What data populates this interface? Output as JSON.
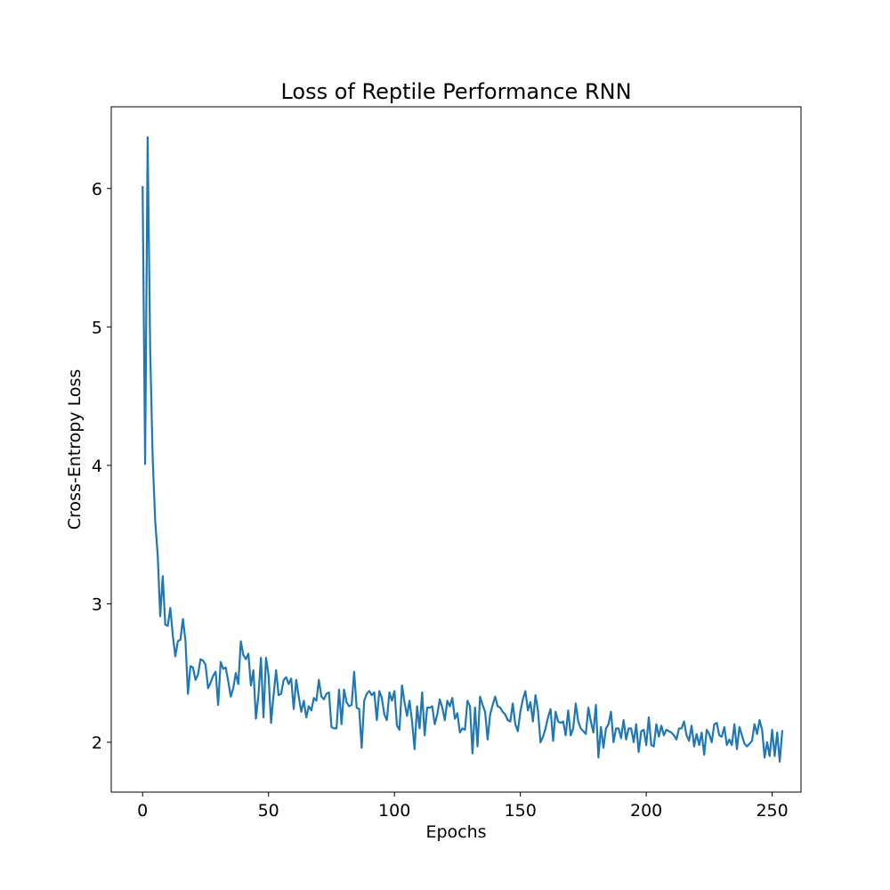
{
  "chart_data": {
    "type": "line",
    "title": "Loss of Reptile Performance RNN",
    "xlabel": "Epochs",
    "ylabel": "Cross-Entropy Loss",
    "xlim": [
      -12.45,
      261.45
    ],
    "ylim": [
      1.64,
      6.59
    ],
    "xticks": [
      0,
      50,
      100,
      150,
      200,
      250
    ],
    "yticks": [
      2,
      3,
      4,
      5,
      6
    ],
    "grid": false,
    "legend": "none",
    "line_color": "#1f77b4",
    "series": [
      {
        "x_start": 0,
        "x_step": 1,
        "values": [
          6.01,
          4.01,
          6.37,
          4.84,
          4.05,
          3.6,
          3.35,
          2.91,
          3.2,
          2.85,
          2.84,
          2.97,
          2.77,
          2.62,
          2.73,
          2.74,
          2.89,
          2.74,
          2.35,
          2.55,
          2.54,
          2.45,
          2.49,
          2.6,
          2.59,
          2.56,
          2.39,
          2.43,
          2.48,
          2.51,
          2.27,
          2.58,
          2.53,
          2.54,
          2.44,
          2.33,
          2.39,
          2.5,
          2.42,
          2.73,
          2.63,
          2.6,
          2.64,
          2.41,
          2.52,
          2.17,
          2.34,
          2.61,
          2.18,
          2.61,
          2.49,
          2.14,
          2.34,
          2.52,
          2.34,
          2.35,
          2.45,
          2.47,
          2.42,
          2.46,
          2.24,
          2.45,
          2.33,
          2.22,
          2.3,
          2.18,
          2.26,
          2.23,
          2.32,
          2.3,
          2.45,
          2.33,
          2.31,
          2.35,
          2.36,
          2.11,
          2.1,
          2.1,
          2.38,
          2.13,
          2.38,
          2.29,
          2.26,
          2.27,
          2.51,
          2.25,
          2.24,
          1.96,
          2.3,
          2.35,
          2.37,
          2.34,
          2.36,
          2.16,
          2.37,
          2.32,
          2.2,
          2.16,
          2.36,
          2.3,
          2.37,
          2.12,
          2.09,
          2.41,
          2.29,
          2.19,
          2.3,
          2.15,
          1.95,
          2.26,
          2.1,
          2.36,
          2.05,
          2.25,
          2.25,
          2.26,
          2.13,
          2.2,
          2.31,
          2.25,
          2.16,
          2.3,
          2.26,
          2.32,
          2.17,
          2.21,
          2.07,
          2.1,
          2.09,
          2.3,
          2.26,
          1.92,
          2.25,
          1.97,
          2.33,
          2.27,
          2.22,
          2.02,
          2.2,
          2.27,
          2.33,
          2.26,
          2.25,
          2.22,
          2.2,
          2.16,
          2.15,
          2.28,
          2.13,
          2.08,
          2.22,
          2.31,
          2.37,
          2.23,
          2.29,
          2.15,
          2.34,
          2.23,
          2.0,
          2.04,
          2.1,
          2.18,
          2.24,
          2.01,
          2.22,
          2.15,
          2.14,
          2.15,
          2.05,
          2.23,
          2.05,
          2.1,
          2.28,
          2.15,
          2.1,
          2.08,
          2.06,
          2.25,
          2.15,
          2.07,
          2.27,
          1.89,
          2.11,
          1.96,
          2.1,
          2.13,
          2.22,
          2.0,
          2.1,
          2.1,
          2.03,
          2.16,
          2.02,
          2.1,
          2.1,
          2.0,
          2.13,
          1.93,
          2.08,
          2.09,
          1.98,
          2.18,
          1.98,
          1.97,
          2.13,
          2.04,
          2.12,
          2.05,
          2.09,
          2.08,
          2.07,
          2.05,
          2.02,
          2.1,
          2.1,
          2.15,
          2.05,
          2.01,
          2.12,
          1.97,
          2.06,
          1.98,
          2.07,
          1.91,
          2.09,
          2.06,
          2.0,
          2.13,
          2.14,
          2.05,
          2.04,
          2.11,
          1.98,
          2.02,
          1.98,
          2.13,
          1.95,
          2.11,
          2.05,
          1.99,
          1.97,
          1.99,
          2.01,
          2.13,
          2.06,
          2.16,
          2.09,
          1.89,
          2.0,
          1.9,
          2.09,
          1.9,
          2.07,
          1.86,
          2.08
        ]
      }
    ]
  }
}
